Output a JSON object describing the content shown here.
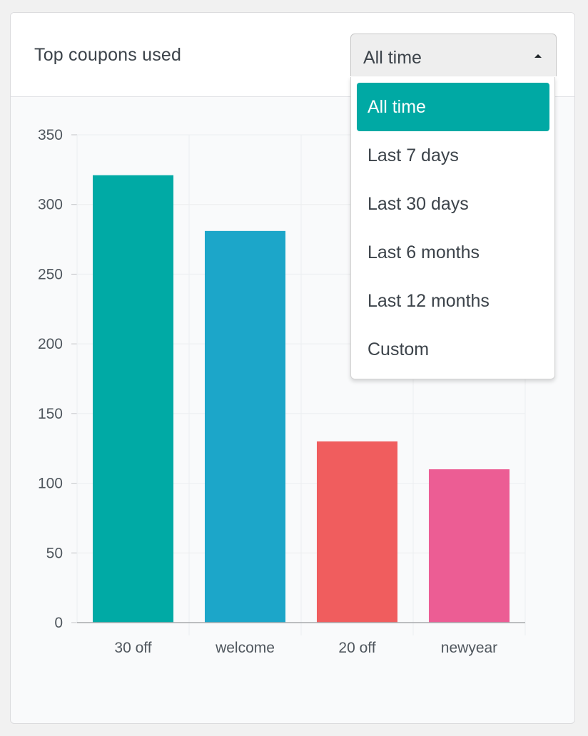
{
  "card": {
    "title": "Top coupons used"
  },
  "select": {
    "value": "All time",
    "arrow_icon": "caret-up-icon",
    "options": [
      {
        "label": "All time",
        "selected": true
      },
      {
        "label": "Last 7 days",
        "selected": false
      },
      {
        "label": "Last 30 days",
        "selected": false
      },
      {
        "label": "Last 6 months",
        "selected": false
      },
      {
        "label": "Last 12 months",
        "selected": false
      },
      {
        "label": "Custom",
        "selected": false
      }
    ],
    "highlight_color": "#00a9a4"
  },
  "chart_data": {
    "type": "bar",
    "title": "",
    "xlabel": "",
    "ylabel": "",
    "categories": [
      "30 off",
      "welcome",
      "20 off",
      "newyear"
    ],
    "values": [
      321,
      281,
      130,
      110
    ],
    "colors": [
      "#00aaa5",
      "#1ca6c9",
      "#f05d5e",
      "#ec5d94"
    ],
    "ylim": [
      0,
      350
    ],
    "yticks": [
      0,
      50,
      100,
      150,
      200,
      250,
      300,
      350
    ],
    "grid": true,
    "legend": "none"
  }
}
